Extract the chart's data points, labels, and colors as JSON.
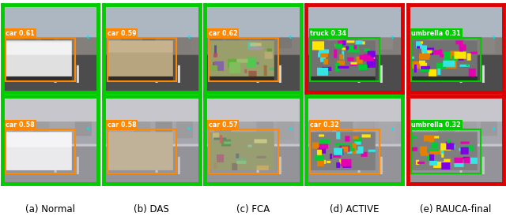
{
  "figsize": [
    6.4,
    2.79
  ],
  "dpi": 100,
  "cols": 5,
  "rows": 2,
  "border_colors_top": [
    "#00cc00",
    "#00cc00",
    "#00cc00",
    "#dd0000",
    "#dd0000"
  ],
  "border_colors_bottom": [
    "#00cc00",
    "#00cc00",
    "#00cc00",
    "#00cc00",
    "#dd0000"
  ],
  "border_lw": 3.5,
  "captions": [
    "(a) Normal",
    "(b) DAS",
    "(c) FCA",
    "(d) ACTIVE",
    "(e) RAUCA-final"
  ],
  "caption_fontsize": 8.5,
  "detection_labels_top": [
    "car 0.61",
    "car 0.59",
    "car 0.62",
    "truck 0.34",
    "umbrella 0.31"
  ],
  "detection_labels_bottom": [
    "car 0.58",
    "car 0.58",
    "car 0.57",
    "car 0.32",
    "umbrella 0.32"
  ],
  "det_box_colors_top": [
    "#ff8800",
    "#ff8800",
    "#ff8800",
    "#00cc00",
    "#00cc00"
  ],
  "det_box_colors_bottom": [
    "#ff8800",
    "#ff8800",
    "#ff8800",
    "#ff8800",
    "#00cc00"
  ],
  "det_label_bg_top": [
    "#ff8800",
    "#ff8800",
    "#ff8800",
    "#00cc00",
    "#00cc00"
  ],
  "det_label_bg_bottom": [
    "#ff8800",
    "#ff8800",
    "#ff8800",
    "#ff8800",
    "#00cc00"
  ],
  "det_label_fontsize": 5.8,
  "white": "#ffffff",
  "black": "#000000",
  "teal": "#00e5ff"
}
